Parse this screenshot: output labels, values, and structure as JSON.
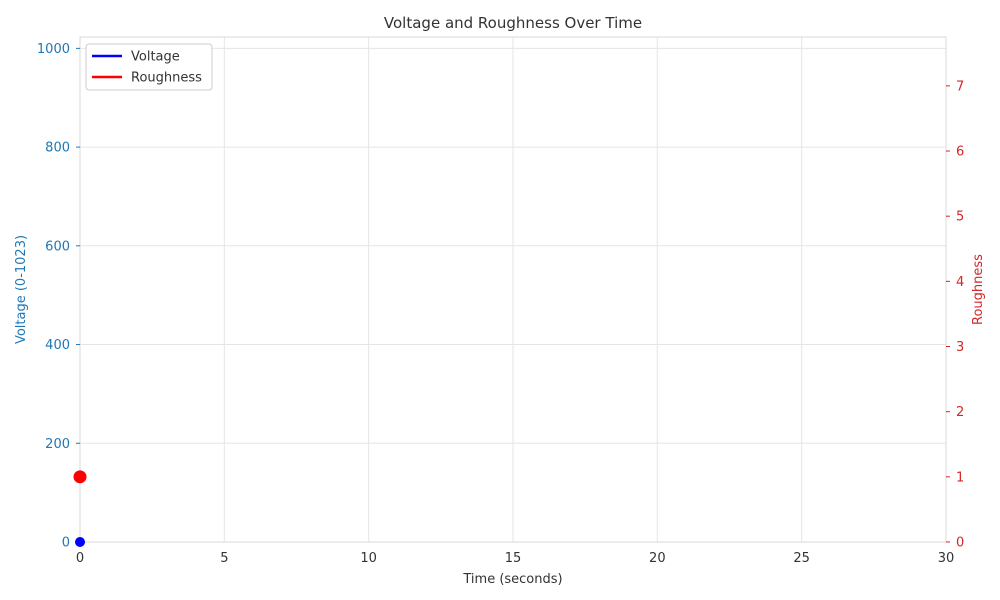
{
  "chart_data": {
    "type": "line",
    "title": "Voltage and Roughness Over Time",
    "xlabel": "Time (seconds)",
    "ylabel_left": "Voltage (0-1023)",
    "ylabel_right": "Roughness",
    "xlim": [
      0,
      30
    ],
    "ylim_left": [
      0,
      1023
    ],
    "ylim_right": [
      0,
      7.75
    ],
    "x_ticks": [
      0,
      5,
      10,
      15,
      20,
      25,
      30
    ],
    "y_ticks_left": [
      0,
      200,
      400,
      600,
      800,
      1000
    ],
    "y_ticks_right": [
      0,
      1,
      2,
      3,
      4,
      5,
      6,
      7
    ],
    "grid": true,
    "legend_position": "top-left",
    "series": [
      {
        "name": "Voltage",
        "axis": "left",
        "color": "#0000ff",
        "x": [
          0
        ],
        "y": [
          0
        ]
      },
      {
        "name": "Roughness",
        "axis": "right",
        "color": "#ff0000",
        "x": [
          0
        ],
        "y": [
          1
        ]
      }
    ],
    "colors": {
      "left_axis": "#1f77b4",
      "right_axis": "#d62728",
      "grid": "#e5e5e5",
      "frame": "#d9d9d9"
    }
  }
}
